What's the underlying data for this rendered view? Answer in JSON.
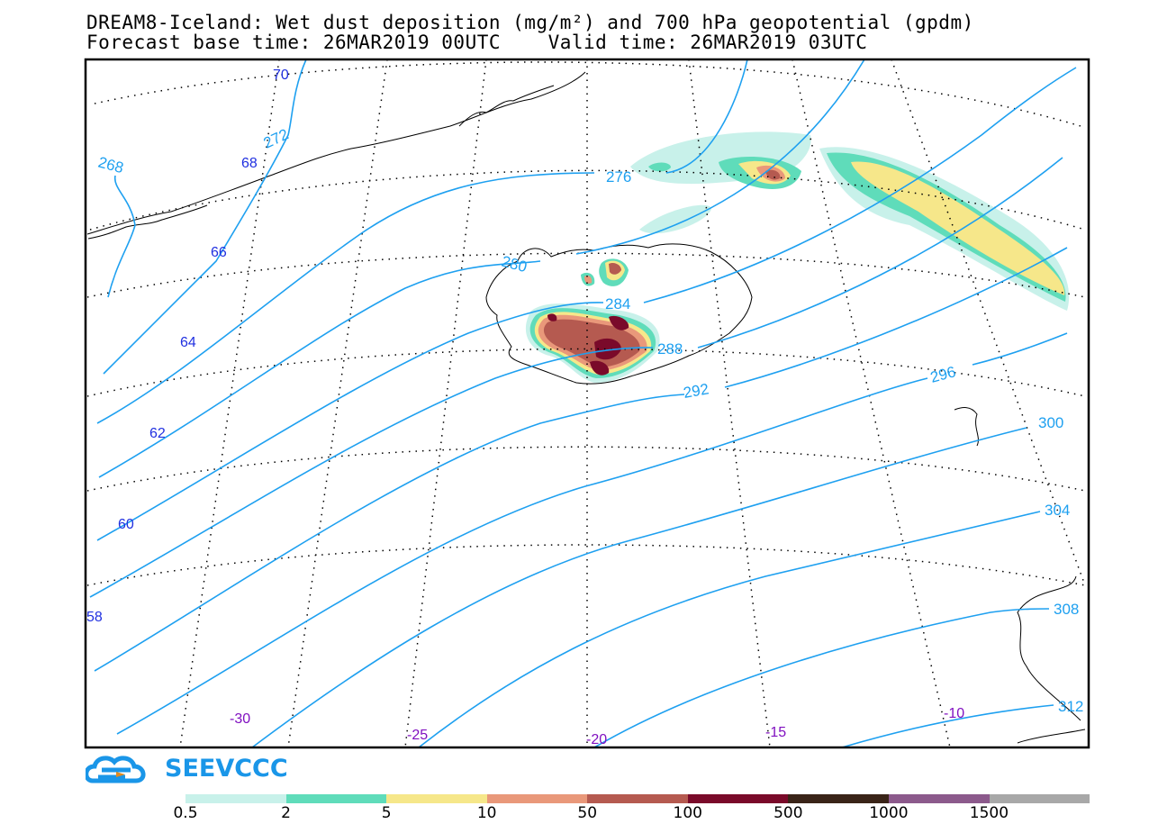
{
  "title": {
    "line1": "DREAM8-Iceland: Wet dust deposition (mg/m²) and 700 hPa geopotential (gpdm)",
    "line2": "Forecast base time: 26MAR2019 00UTC    Valid time: 26MAR2019 03UTC"
  },
  "logo": {
    "text": "SEEVCCC",
    "icon": "cloud-logo-icon"
  },
  "contour_labels": [
    "268",
    "272",
    "276",
    "280",
    "284",
    "288",
    "292",
    "296",
    "300",
    "304",
    "308",
    "312"
  ],
  "lat_labels": [
    "70",
    "68",
    "66",
    "64",
    "62",
    "60",
    "58"
  ],
  "lon_labels": [
    "-30",
    "-25",
    "-20",
    "-15",
    "-10"
  ],
  "legend": {
    "colors": [
      "#c8f1ea",
      "#5fdcba",
      "#f6e78a",
      "#e9987a",
      "#b55a50",
      "#7a0a2a",
      "#3a2418",
      "#8c5a8c",
      "#a8a8a8"
    ],
    "labels": [
      "0.5",
      "2",
      "5",
      "10",
      "50",
      "100",
      "500",
      "1000",
      "1500"
    ]
  },
  "colors": {
    "contour": "#1ea0f0",
    "lat_label": "#2030e0",
    "lon_label": "#8010c0"
  }
}
